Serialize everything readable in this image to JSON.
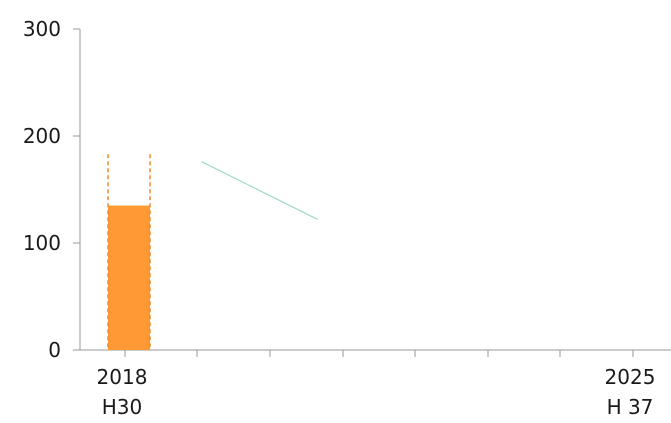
{
  "chart_data": {
    "type": "bar",
    "title": "",
    "xlabel": "",
    "ylabel": "",
    "ylim": [
      0,
      300
    ],
    "y_ticks": [
      0,
      100,
      200,
      300
    ],
    "y_tick_labels": [
      "0",
      "100",
      "200",
      "300"
    ],
    "x_range": [
      2018,
      2025
    ],
    "x_tick_labels": [
      {
        "x": 2018,
        "line1": "2018",
        "line2": "H30"
      },
      {
        "x": 2025,
        "line1": "2025",
        "line2": "H 37"
      }
    ],
    "series": [
      {
        "type": "bar",
        "points": [
          {
            "x": 2018,
            "y": 135
          }
        ]
      },
      {
        "type": "bar-outline-dashed",
        "points": [
          {
            "x": 2018,
            "y": 183
          }
        ]
      },
      {
        "type": "line",
        "points": [
          {
            "x": 2019.0,
            "y": 176
          },
          {
            "x": 2020.6,
            "y": 122
          }
        ]
      }
    ],
    "colors": {
      "bar": "#ff9933",
      "dashed": "#f28c28",
      "line": "#9fd8d0",
      "axis": "#999999",
      "text": "#1a1a1a"
    },
    "grid": false,
    "legend": "none"
  }
}
